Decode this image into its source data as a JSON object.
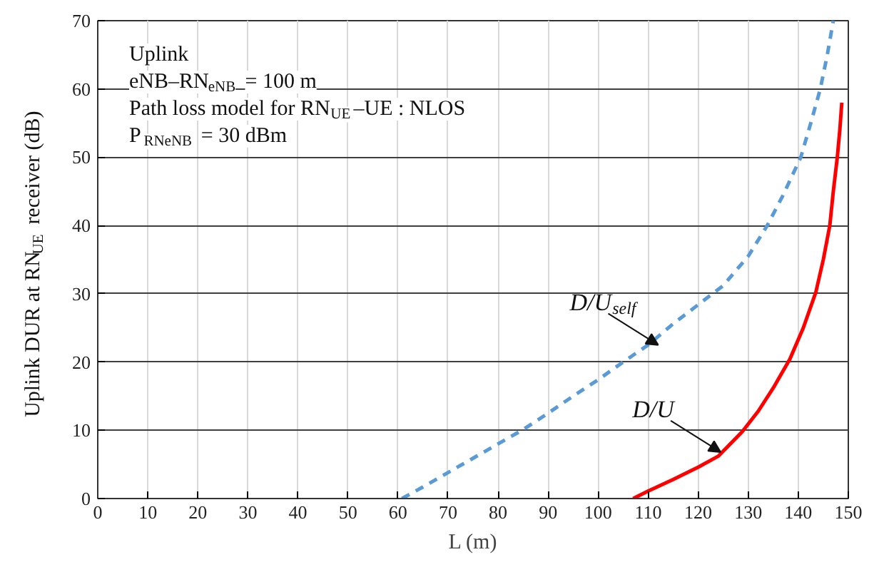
{
  "chart_data": {
    "type": "line",
    "xlabel": "L (m)",
    "ylabel": "Uplink DUR at RN$_{UE}$ receiver (dB)",
    "xlim": [
      0,
      150
    ],
    "xticks": [
      0,
      10,
      20,
      30,
      40,
      50,
      60,
      70,
      80,
      90,
      100,
      110,
      120,
      130,
      140,
      150
    ],
    "ylim": [
      0,
      70
    ],
    "yticks": [
      0,
      10,
      20,
      30,
      40,
      50,
      60,
      70
    ],
    "grid": true,
    "series": [
      {
        "color": "#5b9bd5",
        "line_style": "dashed",
        "x": [
          60.8,
          65,
          70,
          75,
          80,
          85,
          90,
          95,
          100,
          105,
          110,
          115,
          120,
          125,
          130,
          133.8,
          137,
          140.5,
          142.5,
          144.4,
          145.8,
          147
        ],
        "values": [
          0,
          1.7,
          3.8,
          5.9,
          8,
          10.1,
          12.5,
          15,
          17.4,
          20,
          22.5,
          25.6,
          28.4,
          31.2,
          35.5,
          40,
          44.5,
          50,
          55,
          60,
          65,
          70
        ]
      },
      {
        "color": "#ff0000",
        "line_style": "solid",
        "x": [
          107,
          110,
          115,
          120,
          124,
          128.8,
          132,
          135,
          138.3,
          141,
          143.5,
          145,
          146.3,
          147,
          147.8,
          148.3,
          148.7
        ],
        "values": [
          0,
          1.1,
          2.8,
          4.6,
          6.2,
          9.8,
          12.8,
          16.2,
          20.4,
          25,
          30.2,
          35,
          40,
          45,
          50,
          54,
          58
        ]
      }
    ],
    "annotations": [
      "Uplink",
      "eNB–RN$_{eNB}$ = 100 m",
      "Path loss model for RN$_{UE}$–UE : NLOS",
      "P$_{RNeNB}$ = 30 dBm",
      {
        "text": "D/U$_{self}$",
        "x": 112,
        "y": 22.5
      },
      {
        "text": "D/U",
        "x": 124.5,
        "y": 6.8
      }
    ]
  }
}
